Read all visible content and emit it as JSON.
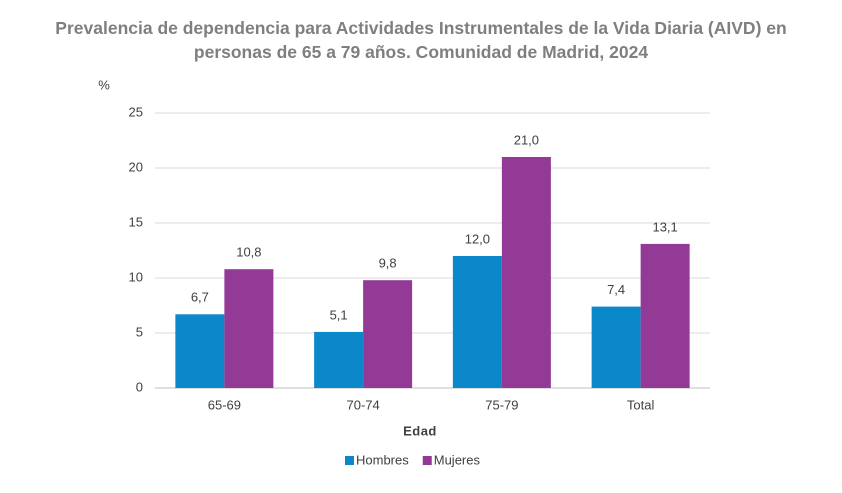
{
  "chart_data": {
    "type": "bar",
    "title": "Prevalencia de dependencia para Actividades Instrumentales de la Vida Diaria (AIVD) en personas de 65 a 79 años. Comunidad de Madrid, 2024",
    "y_label": "%",
    "x_label": "Edad",
    "categories": [
      "65-69",
      "70-74",
      "75-79",
      "Total"
    ],
    "series": [
      {
        "name": "Hombres",
        "color": "#0a88c9",
        "values": [
          6.7,
          5.1,
          12.0,
          7.4
        ],
        "value_labels": [
          "6,7",
          "5,1",
          "12,0",
          "7,4"
        ]
      },
      {
        "name": "Mujeres",
        "color": "#933996",
        "values": [
          10.8,
          9.8,
          21.0,
          13.1
        ],
        "value_labels": [
          "10,8",
          "9,8",
          "21,0",
          "13,1"
        ]
      }
    ],
    "ylim": [
      0,
      25
    ],
    "yticks": [
      0,
      5,
      10,
      15,
      20,
      25
    ],
    "grid": true,
    "legend": "bottom"
  }
}
